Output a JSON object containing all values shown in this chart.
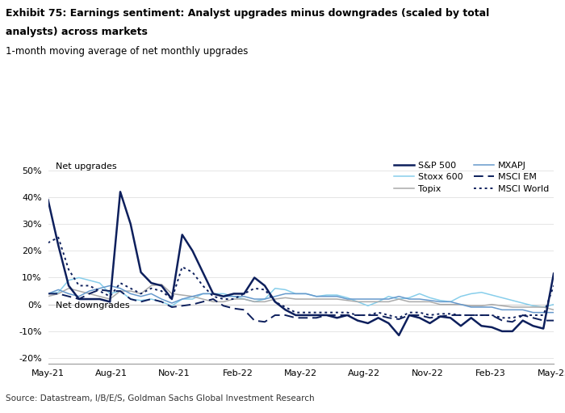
{
  "title_bold": "Exhibit 75: Earnings sentiment: Analyst upgrades minus downgrades (scaled by total\nanalysts) across markets",
  "title_sub": "1-month moving average of net monthly upgrades",
  "source": "Source: Datastream, I/B/E/S, Goldman Sachs Global Investment Research",
  "annotation_upgrades": "Net upgrades",
  "annotation_downgrades": "Net downgrades",
  "ylim": [
    -0.22,
    0.55
  ],
  "yticks": [
    -0.2,
    -0.1,
    0.0,
    0.1,
    0.2,
    0.3,
    0.4,
    0.5
  ],
  "colors": {
    "sp500": "#0d1f5c",
    "stoxx600": "#87ceeb",
    "topix": "#aaaaaa",
    "mxapj": "#6699cc",
    "msci_em": "#0d1f5c",
    "msci_world": "#0d1f5c"
  },
  "x_labels": [
    "May-21",
    "Aug-21",
    "Nov-21",
    "Feb-22",
    "May-22",
    "Aug-22",
    "Nov-22",
    "Feb-23",
    "May-23"
  ],
  "series": {
    "sp500": [
      0.39,
      0.22,
      0.07,
      0.02,
      0.02,
      0.02,
      0.01,
      0.42,
      0.3,
      0.12,
      0.08,
      0.07,
      0.02,
      0.26,
      0.2,
      0.12,
      0.04,
      0.03,
      0.04,
      0.04,
      0.1,
      0.07,
      0.01,
      -0.02,
      -0.04,
      -0.04,
      -0.04,
      -0.04,
      -0.05,
      -0.04,
      -0.06,
      -0.07,
      -0.05,
      -0.07,
      -0.115,
      -0.04,
      -0.05,
      -0.07,
      -0.045,
      -0.05,
      -0.08,
      -0.05,
      -0.08,
      -0.085,
      -0.1,
      -0.1,
      -0.06,
      -0.08,
      -0.09,
      0.115
    ],
    "stoxx600": [
      0.04,
      0.045,
      0.09,
      0.1,
      0.09,
      0.08,
      0.04,
      0.05,
      0.02,
      0.015,
      0.02,
      0.01,
      -0.005,
      0.02,
      0.02,
      0.04,
      0.04,
      0.04,
      0.03,
      0.02,
      0.01,
      0.02,
      0.06,
      0.055,
      0.04,
      0.04,
      0.03,
      0.035,
      0.035,
      0.025,
      0.01,
      -0.005,
      0.01,
      0.03,
      0.02,
      0.025,
      0.04,
      0.025,
      0.015,
      0.01,
      0.03,
      0.04,
      0.045,
      0.035,
      0.025,
      0.015,
      0.005,
      -0.005,
      -0.01,
      0.0
    ],
    "topix": [
      0.03,
      0.04,
      0.06,
      0.05,
      0.04,
      0.03,
      0.02,
      0.05,
      0.05,
      0.04,
      0.07,
      0.075,
      0.04,
      0.035,
      0.03,
      0.02,
      0.01,
      0.01,
      0.02,
      0.02,
      0.01,
      0.01,
      0.02,
      0.025,
      0.02,
      0.02,
      0.02,
      0.02,
      0.02,
      0.015,
      0.01,
      0.01,
      0.01,
      0.01,
      0.02,
      0.01,
      0.01,
      0.01,
      0.0,
      0.0,
      0.0,
      -0.005,
      -0.005,
      0.0,
      -0.005,
      -0.01,
      -0.01,
      -0.01,
      -0.01,
      -0.02
    ],
    "mxapj": [
      0.04,
      0.055,
      0.04,
      0.03,
      0.05,
      0.06,
      0.07,
      0.06,
      0.04,
      0.03,
      0.04,
      0.02,
      0.005,
      0.02,
      0.03,
      0.04,
      0.04,
      0.03,
      0.03,
      0.03,
      0.02,
      0.02,
      0.03,
      0.04,
      0.04,
      0.04,
      0.03,
      0.03,
      0.03,
      0.02,
      0.02,
      0.02,
      0.02,
      0.02,
      0.03,
      0.02,
      0.02,
      0.015,
      0.01,
      0.01,
      0.0,
      -0.01,
      -0.01,
      -0.01,
      -0.02,
      -0.02,
      -0.02,
      -0.03,
      -0.03,
      -0.03
    ],
    "msci_em": [
      0.04,
      0.04,
      0.03,
      0.02,
      0.04,
      0.055,
      0.05,
      0.05,
      0.02,
      0.01,
      0.02,
      0.01,
      -0.01,
      -0.005,
      0.0,
      0.01,
      0.02,
      -0.005,
      -0.015,
      -0.02,
      -0.06,
      -0.065,
      -0.04,
      -0.04,
      -0.05,
      -0.05,
      -0.05,
      -0.04,
      -0.04,
      -0.04,
      -0.04,
      -0.04,
      -0.04,
      -0.05,
      -0.055,
      -0.04,
      -0.04,
      -0.05,
      -0.045,
      -0.04,
      -0.04,
      -0.04,
      -0.04,
      -0.04,
      -0.06,
      -0.065,
      -0.04,
      -0.05,
      -0.06,
      -0.06
    ],
    "msci_world": [
      0.23,
      0.25,
      0.13,
      0.07,
      0.07,
      0.05,
      0.03,
      0.08,
      0.06,
      0.04,
      0.06,
      0.05,
      0.02,
      0.14,
      0.12,
      0.07,
      0.03,
      0.02,
      0.02,
      0.04,
      0.06,
      0.055,
      0.01,
      -0.01,
      -0.03,
      -0.03,
      -0.03,
      -0.03,
      -0.03,
      -0.03,
      -0.04,
      -0.04,
      -0.03,
      -0.04,
      -0.05,
      -0.03,
      -0.03,
      -0.04,
      -0.035,
      -0.035,
      -0.04,
      -0.04,
      -0.04,
      -0.04,
      -0.05,
      -0.05,
      -0.04,
      -0.04,
      -0.04,
      0.07
    ]
  }
}
